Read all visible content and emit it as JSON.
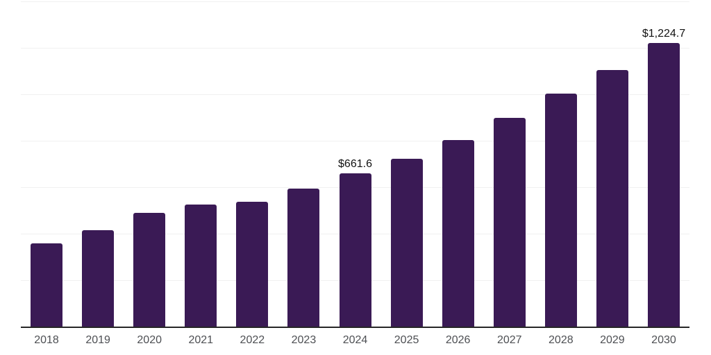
{
  "chart_data": {
    "type": "bar",
    "title": "",
    "xlabel": "",
    "ylabel": "",
    "categories": [
      "2018",
      "2019",
      "2020",
      "2021",
      "2022",
      "2023",
      "2024",
      "2025",
      "2026",
      "2027",
      "2028",
      "2029",
      "2030"
    ],
    "values": [
      360.6,
      416.8,
      493.7,
      529.1,
      539.5,
      597.1,
      661.6,
      724.2,
      807.0,
      901.6,
      1005.0,
      1108.5,
      1224.7
    ],
    "data_labels": [
      "",
      "",
      "",
      "",
      "",
      "",
      "$661.6",
      "",
      "",
      "",
      "",
      "",
      "$1,224.7"
    ],
    "ylim": [
      0,
      1400
    ],
    "grid_step": 200,
    "grid": "horizontal",
    "legend": "none",
    "colors": {
      "bar": "#3a1a55",
      "grid": "#f0f0f0",
      "axis": "#262626",
      "tick": "#4d4f53",
      "value": "#111111",
      "bg": "#ffffff"
    }
  }
}
